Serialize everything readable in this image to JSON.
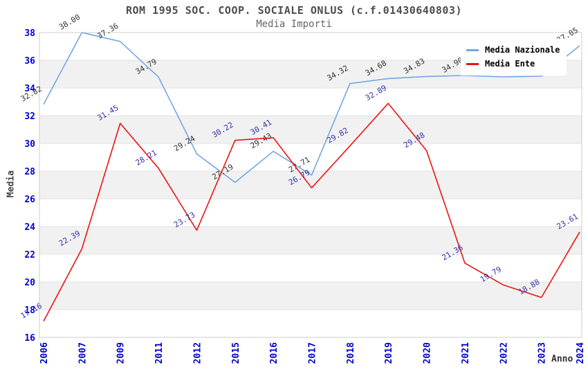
{
  "title": "ROM 1995 SOC. COOP. SOCIALE ONLUS (c.f.01430640803)",
  "subtitle": "Media Importi",
  "axes": {
    "x_title": "Anno",
    "y_title": "Media"
  },
  "legend": {
    "position": "top-right",
    "items": [
      {
        "label": "Media Nazionale"
      },
      {
        "label": "Media Ente"
      }
    ]
  },
  "colors": {
    "tick_labels": "#0000cc",
    "band_fill": "#f1f1f1",
    "gridline": "#e2e2e2",
    "frame": "#cccccc",
    "title_text": "#4d4d4d",
    "subtitle_text": "#666666"
  },
  "chart_data": {
    "type": "line",
    "categories": [
      "2006",
      "2007",
      "2009",
      "2011",
      "2012",
      "2015",
      "2016",
      "2017",
      "2018",
      "2019",
      "2020",
      "2021",
      "2022",
      "2023",
      "2024"
    ],
    "series": [
      {
        "name": "Media Nazionale",
        "color": "#74a7e0",
        "label_color": "#333333",
        "values": [
          32.82,
          38.0,
          37.36,
          34.79,
          29.24,
          27.19,
          29.43,
          27.71,
          34.32,
          34.68,
          34.83,
          34.9,
          34.8,
          34.85,
          37.05
        ],
        "labels": [
          "32.82",
          "38.00",
          "37.36",
          "34.79",
          "29.24",
          "27.19",
          "29.43",
          "27.71",
          "34.32",
          "34.68",
          "34.83",
          "34.90",
          "34.80",
          "34.85",
          "37.05"
        ],
        "labels_occluded_by_legend_at": [
          "2021",
          "2022",
          "2023"
        ]
      },
      {
        "name": "Media Ente",
        "color": "#ee1212",
        "label_color": "#3333aa",
        "values": [
          17.16,
          22.39,
          31.45,
          28.21,
          23.73,
          30.22,
          30.41,
          26.79,
          29.82,
          32.89,
          29.48,
          21.36,
          19.79,
          18.88,
          23.61
        ],
        "labels": [
          "17.16",
          "22.39",
          "31.45",
          "28.21",
          "23.73",
          "30.22",
          "30.41",
          "26.79",
          "29.82",
          "32.89",
          "29.48",
          "21.36",
          "19.79",
          "18.88",
          "23.61"
        ]
      }
    ],
    "title": "ROM 1995 SOC. COOP. SOCIALE ONLUS (c.f.01430640803)",
    "xlabel": "Anno",
    "ylabel": "Media",
    "ylim": [
      16,
      38
    ],
    "ytick_step": 2,
    "grid": "horizontal gridlines with alternating gray bands",
    "legend_position": "top-right"
  }
}
